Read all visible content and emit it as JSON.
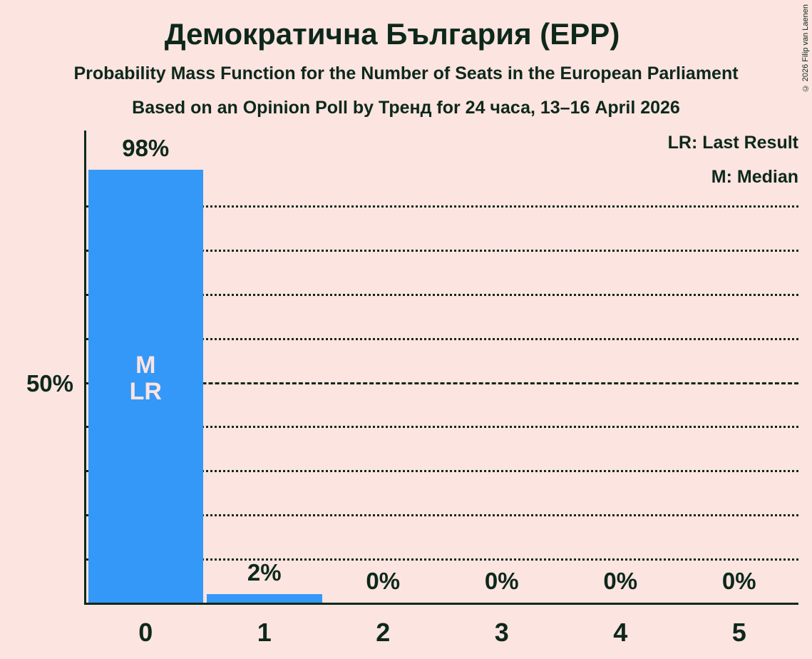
{
  "title": "Демократична България (EPP)",
  "subtitle1": "Probability Mass Function for the Number of Seats in the European Parliament",
  "subtitle2": "Based on an Opinion Poll by Тренд for 24 часа, 13–16 April 2026",
  "legend": {
    "lr": "LR: Last Result",
    "m": "M: Median"
  },
  "copyright": "© 2026 Filip van Laenen",
  "y_axis": {
    "tick_label": "50%"
  },
  "colors": {
    "background": "#fce4e0",
    "bar": "#3498f8",
    "text": "#0d281b",
    "bar_label": "#fce4e1"
  },
  "chart_data": {
    "type": "bar",
    "title": "Демократична България (EPP)",
    "categories": [
      "0",
      "1",
      "2",
      "3",
      "4",
      "5"
    ],
    "values": [
      98,
      2,
      0,
      0,
      0,
      0
    ],
    "value_labels": [
      "98%",
      "2%",
      "0%",
      "0%",
      "0%",
      "0%"
    ],
    "bar_annotations": [
      [
        "M",
        "LR"
      ],
      [],
      [],
      [],
      [],
      []
    ],
    "xlabel": "",
    "ylabel": "",
    "ylim": [
      0,
      100
    ],
    "y_tick_pct": 50,
    "gridlines_pct": [
      10,
      20,
      30,
      40,
      50,
      60,
      70,
      80,
      90
    ],
    "median_line_pct": 50,
    "grid": true,
    "legend_position": "top-right"
  }
}
